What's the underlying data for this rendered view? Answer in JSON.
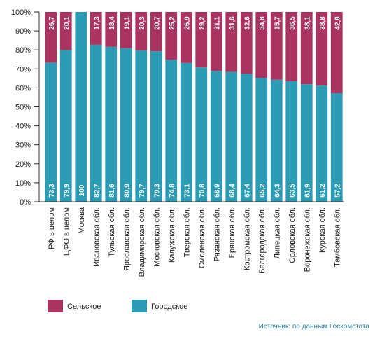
{
  "chart_data": {
    "type": "stacked-bar",
    "categories": [
      "РФ в целом",
      "ЦФО в целом",
      "Москва",
      "Ивановская обл.",
      "Тульская обл.",
      "Ярославская обл.",
      "Владимирская обл.",
      "Московская обл.",
      "Калужская обл.",
      "Тверская обл.",
      "Смоленская обл.",
      "Рязанская обл.",
      "Брянская обл.",
      "Костромская обл.",
      "Белгородская обл.",
      "Липецкая обл.",
      "Орловская обл.",
      "Воронежская обл.",
      "Курская обл.",
      "Тамбовская обл."
    ],
    "series": [
      {
        "name": "Сельское",
        "color": "#a8345f",
        "values": [
          26.7,
          20.1,
          null,
          17.3,
          18.4,
          19.1,
          20.3,
          20.7,
          25.2,
          26.9,
          29.2,
          31.1,
          31.6,
          32.6,
          34.8,
          35.7,
          36.5,
          38.1,
          38.8,
          42.8
        ],
        "value_labels": [
          "26,7",
          "20,1",
          null,
          "17,3",
          "18,4",
          "19,1",
          "20,3",
          "20,7",
          "25,2",
          "26,9",
          "29,2",
          "31,1",
          "31,6",
          "32,6",
          "34,8",
          "35,7",
          "36,5",
          "38,1",
          "38,8",
          "42,8"
        ]
      },
      {
        "name": "Городское",
        "color": "#2b9cb3",
        "values": [
          73.3,
          79.9,
          100,
          82.7,
          81.6,
          80.9,
          79.7,
          79.3,
          74.8,
          73.1,
          70.8,
          68.9,
          68.4,
          67.4,
          65.2,
          64.3,
          63.5,
          61.9,
          61.2,
          57.2
        ],
        "value_labels": [
          "73,3",
          "79,9",
          "100",
          "82,7",
          "81,6",
          "80,9",
          "79,7",
          "79,3",
          "74,8",
          "73,1",
          "70,8",
          "68,9",
          "68,4",
          "67,4",
          "65,2",
          "64,3",
          "63,5",
          "61,9",
          "61,2",
          "57,2"
        ]
      }
    ],
    "ylim": [
      0,
      100
    ],
    "yticks": [
      {
        "value": 0,
        "label": "0%"
      },
      {
        "value": 10,
        "label": "10%"
      },
      {
        "value": 20,
        "label": "20%"
      },
      {
        "value": 30,
        "label": "30%"
      },
      {
        "value": 40,
        "label": "40%"
      },
      {
        "value": 50,
        "label": "50%"
      },
      {
        "value": 60,
        "label": "60%"
      },
      {
        "value": 70,
        "label": "70%"
      },
      {
        "value": 80,
        "label": "80%"
      },
      {
        "value": 90,
        "label": "90%"
      },
      {
        "value": 100,
        "label": "100%"
      }
    ],
    "source": "Источник: по данным Госкомстата"
  }
}
